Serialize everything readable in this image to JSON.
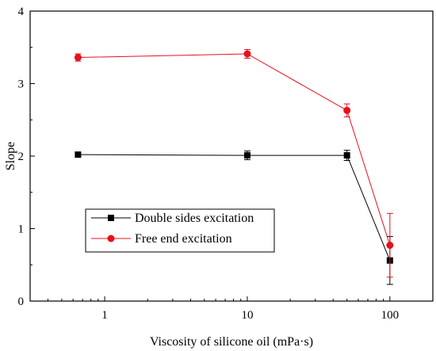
{
  "chart_data": {
    "type": "line",
    "xscale": "log",
    "xlim": [
      0.3,
      200
    ],
    "ylim": [
      0,
      4
    ],
    "xlabel": "Viscosity of silicone oil (mPa·s)",
    "ylabel": "Slope",
    "x_ticks": [
      1,
      10,
      100
    ],
    "x_tick_labels": [
      "1",
      "10",
      "100"
    ],
    "y_ticks": [
      0,
      1,
      2,
      3,
      4
    ],
    "y_tick_labels": [
      "0",
      "1",
      "2",
      "3",
      "4"
    ],
    "grid": false,
    "legend_position": "lower-left",
    "series": [
      {
        "name": "Double sides excitation",
        "color": "#000000",
        "marker": "square",
        "x": [
          0.65,
          10,
          50,
          100
        ],
        "y": [
          2.02,
          2.01,
          2.01,
          0.56
        ],
        "err": [
          0.02,
          0.06,
          0.07,
          0.33
        ]
      },
      {
        "name": "Free end excitation",
        "color": "#e8101b",
        "marker": "circle",
        "x": [
          0.65,
          10,
          50,
          100
        ],
        "y": [
          3.36,
          3.41,
          2.63,
          0.77
        ],
        "err": [
          0.05,
          0.06,
          0.09,
          0.44
        ]
      }
    ]
  }
}
